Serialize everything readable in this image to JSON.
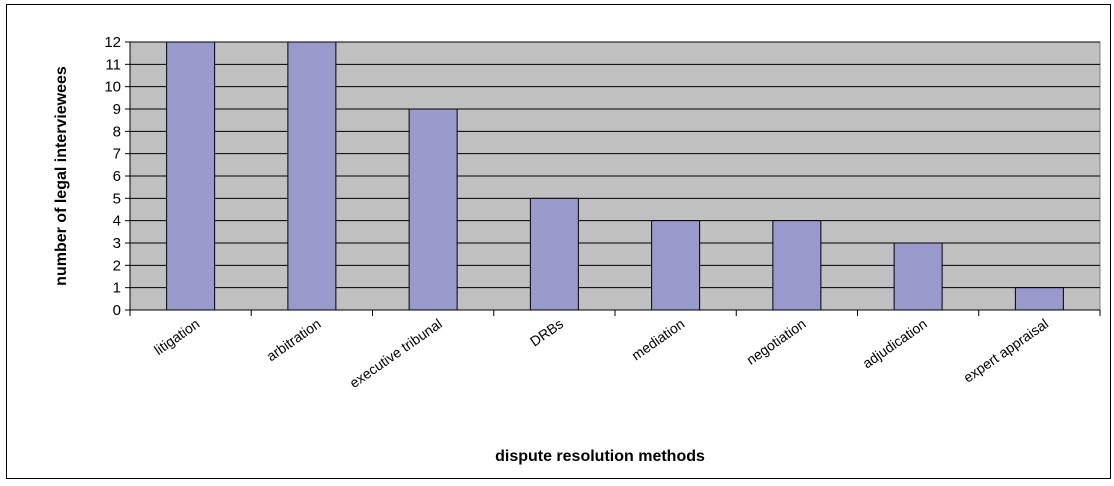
{
  "chart_data": {
    "type": "bar",
    "title": "",
    "xlabel": "dispute resolution methods",
    "ylabel": "number of legal interviewees",
    "categories": [
      "litigation",
      "arbitration",
      "executive tribunal",
      "DRBs",
      "mediation",
      "negotiation",
      "adjudication",
      "expert appraisal"
    ],
    "values": [
      12,
      12,
      9,
      5,
      4,
      4,
      3,
      1
    ],
    "ylim": [
      0,
      12
    ],
    "yticks": [
      "0",
      "1",
      "2",
      "3",
      "4",
      "5",
      "6",
      "7",
      "8",
      "9",
      "10",
      "11",
      "12"
    ],
    "grid": true,
    "legend": "none",
    "colors": {
      "bar_fill": "#9999cc",
      "plot_background": "#c0c0c0",
      "gridline": "#000000",
      "bar_stroke": "#000000"
    }
  }
}
